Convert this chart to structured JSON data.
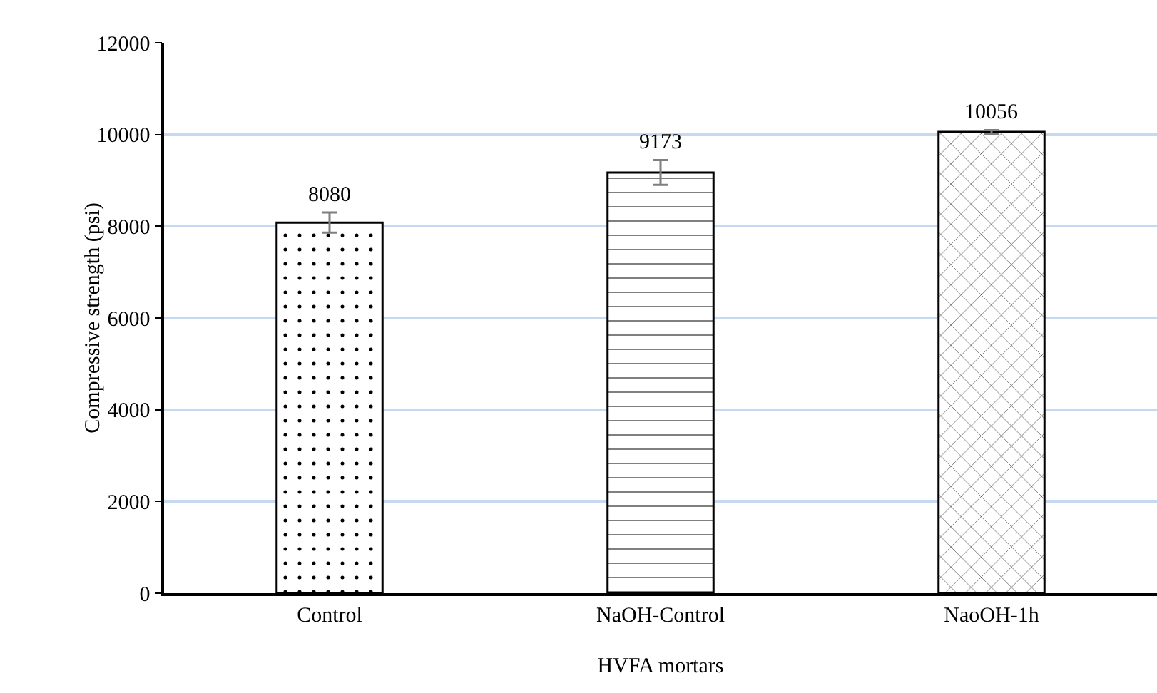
{
  "chart_data": {
    "type": "bar",
    "xlabel": "HVFA mortars",
    "ylabel": "Compressive strength (psi)",
    "categories": [
      "Control",
      "NaOH-Control",
      "NaoOH-1h"
    ],
    "values": [
      8080,
      9173,
      10056
    ],
    "errors": [
      220,
      270,
      40
    ],
    "ylim": [
      0,
      12000
    ],
    "yticks": [
      0,
      2000,
      4000,
      6000,
      8000,
      10000,
      12000
    ],
    "grid": "y",
    "data_labels": true
  }
}
